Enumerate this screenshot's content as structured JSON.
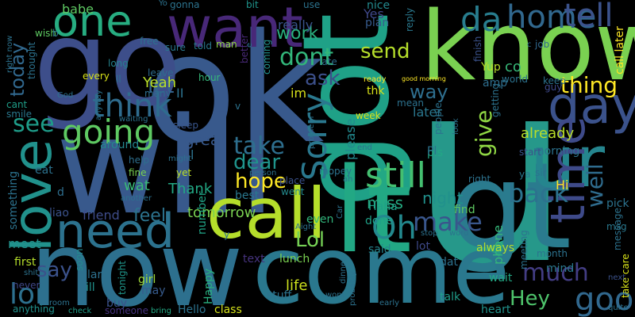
{
  "image": {
    "background_color": "#000000",
    "palette": "viridis"
  },
  "words": [
    {
      "text": "u",
      "color": "#26988a"
    },
    {
      "text": "ok",
      "color": "#38598c"
    },
    {
      "text": "will",
      "color": "#38598c"
    },
    {
      "text": "go",
      "color": "#3d4e8a"
    },
    {
      "text": "know",
      "color": "#7ad151"
    },
    {
      "text": "got",
      "color": "#1fa187"
    },
    {
      "text": "lt",
      "color": "#22a884"
    },
    {
      "text": "gt",
      "color": "#2a7b8e"
    },
    {
      "text": "now",
      "color": "#2d708e"
    },
    {
      "text": "come",
      "color": "#2a788e"
    },
    {
      "text": "call",
      "color": "#b5de2b"
    },
    {
      "text": "want",
      "color": "#482878"
    },
    {
      "text": "one",
      "color": "#27ad81"
    },
    {
      "text": "love",
      "color": "#21918c"
    },
    {
      "text": "need",
      "color": "#2c728e"
    },
    {
      "text": "ur",
      "color": "#25858e"
    },
    {
      "text": "day",
      "color": "#3b528b"
    },
    {
      "text": "time",
      "color": "#3e4a89"
    },
    {
      "text": "da",
      "color": "#287d8e"
    },
    {
      "text": "home",
      "color": "#31688e"
    },
    {
      "text": "tell",
      "color": "#3b528b"
    },
    {
      "text": "going",
      "color": "#5ec962"
    },
    {
      "text": "think",
      "color": "#2f6c8e"
    },
    {
      "text": "still",
      "color": "#44bf70"
    },
    {
      "text": "take",
      "color": "#2e6f8e"
    },
    {
      "text": "Sorry",
      "color": "#2a788e"
    },
    {
      "text": "dont",
      "color": "#32b67a"
    },
    {
      "text": "work",
      "color": "#2ab07f"
    },
    {
      "text": "see",
      "color": "#1e9c89"
    },
    {
      "text": "today",
      "color": "#31688e"
    },
    {
      "text": "good",
      "color": "#31688e"
    },
    {
      "text": "back",
      "color": "#2c728e"
    },
    {
      "text": "make",
      "color": "#39568c"
    },
    {
      "text": "Oh",
      "color": "#23898e"
    },
    {
      "text": "hope",
      "color": "#fde725"
    },
    {
      "text": "dear",
      "color": "#1f948c"
    },
    {
      "text": "much",
      "color": "#433d84"
    },
    {
      "text": "Hey",
      "color": "#4ec36b"
    },
    {
      "text": "say",
      "color": "#3b528b"
    },
    {
      "text": "lor",
      "color": "#2d708e"
    },
    {
      "text": "give",
      "color": "#8fd744"
    },
    {
      "text": "well",
      "color": "#2f6c8e"
    },
    {
      "text": "thing",
      "color": "#fde725"
    },
    {
      "text": "way",
      "color": "#2e6e8e"
    },
    {
      "text": "send",
      "color": "#b5de2b"
    },
    {
      "text": "ask",
      "color": "#3c4f8a"
    },
    {
      "text": "let",
      "color": "#33638d"
    },
    {
      "text": "Lol",
      "color": "#75d054"
    },
    {
      "text": "Yeah",
      "color": "#b8de29"
    },
    {
      "text": "feel",
      "color": "#2c738e"
    },
    {
      "text": "night",
      "color": "#21918c"
    },
    {
      "text": "miss",
      "color": "#25ab82"
    },
    {
      "text": "please",
      "color": "#23898e"
    },
    {
      "text": "really",
      "color": "#3a548c"
    },
    {
      "text": "babe",
      "color": "#5ec962"
    },
    {
      "text": "already",
      "color": "#b8de29"
    },
    {
      "text": "tomorrow",
      "color": "#7ad151"
    },
    {
      "text": "great",
      "color": "#38598c"
    },
    {
      "text": "Thank",
      "color": "#22a884"
    },
    {
      "text": "wat",
      "color": "#39b977"
    },
    {
      "text": "friend",
      "color": "#3e4c8a"
    },
    {
      "text": "phone",
      "color": "#35b779"
    },
    {
      "text": "later",
      "color": "#2a778e"
    },
    {
      "text": "meet",
      "color": "#21918c"
    },
    {
      "text": "life",
      "color": "#cde11d"
    },
    {
      "text": "Hi",
      "color": "#fde725"
    },
    {
      "text": "Yes",
      "color": "#3f4889"
    },
    {
      "text": "im",
      "color": "#d8e219"
    },
    {
      "text": "pls",
      "color": "#22a884"
    },
    {
      "text": "lunch",
      "color": "#7ad151"
    },
    {
      "text": "text",
      "color": "#46337e"
    },
    {
      "text": "said",
      "color": "#25858e"
    },
    {
      "text": "lot",
      "color": "#3e4989"
    },
    {
      "text": "find",
      "color": "#5ec962"
    },
    {
      "text": "always",
      "color": "#b5de2b"
    },
    {
      "text": "Haha",
      "color": "#1fa088"
    },
    {
      "text": "done",
      "color": "#1fa188"
    },
    {
      "text": "even",
      "color": "#31b57b"
    },
    {
      "text": "wait",
      "color": "#22a884"
    },
    {
      "text": "mind",
      "color": "#2a788e"
    },
    {
      "text": "heart",
      "color": "#20928c"
    },
    {
      "text": "class",
      "color": "#d5e21a"
    },
    {
      "text": "stuff",
      "color": "#2c738e"
    },
    {
      "text": "talk",
      "color": "#1f9e89"
    },
    {
      "text": "Happy",
      "color": "#2ab07f"
    },
    {
      "text": "Hello",
      "color": "#2c738e"
    },
    {
      "text": "buy",
      "color": "#3b528b"
    },
    {
      "text": "girl",
      "color": "#a0da39"
    },
    {
      "text": "may",
      "color": "#375b8d"
    },
    {
      "text": "first",
      "color": "#b5de2b"
    },
    {
      "text": "never",
      "color": "#3f4788"
    },
    {
      "text": "anything",
      "color": "#21918c"
    },
    {
      "text": "someone",
      "color": "#46327e"
    },
    {
      "text": "check",
      "color": "#1f9e89"
    },
    {
      "text": "bring",
      "color": "#22a884"
    },
    {
      "text": "ill",
      "color": "#20928c"
    },
    {
      "text": "lar",
      "color": "#2d708e"
    },
    {
      "text": "soon",
      "color": "#238a8d"
    },
    {
      "text": "tonight",
      "color": "#1f968b"
    },
    {
      "text": "liao",
      "color": "#3b528b"
    },
    {
      "text": "d",
      "color": "#2e6e8e"
    },
    {
      "text": "something",
      "color": "#2c728e"
    },
    {
      "text": "eat",
      "color": "#2c728e"
    },
    {
      "text": "around",
      "color": "#24868e"
    },
    {
      "text": "sleep",
      "color": "#39568c"
    },
    {
      "text": "help",
      "color": "#2e6f8e"
    },
    {
      "text": "fine",
      "color": "#7ad151"
    },
    {
      "text": "yet",
      "color": "#bddf26"
    },
    {
      "text": "best",
      "color": "#2a788e"
    },
    {
      "text": "went",
      "color": "#238a8d"
    },
    {
      "text": "place",
      "color": "#3b528b"
    },
    {
      "text": "number",
      "color": "#20a386"
    },
    {
      "text": "leave",
      "color": "#2f6c8e"
    },
    {
      "text": "hour",
      "color": "#35b779"
    },
    {
      "text": "told",
      "color": "#2a778e"
    },
    {
      "text": "sure",
      "color": "#2a788e"
    },
    {
      "text": "free",
      "color": "#2c728e"
    },
    {
      "text": "every",
      "color": "#d8e219"
    },
    {
      "text": "long",
      "color": "#26828e"
    },
    {
      "text": "many",
      "color": "#2e6e8e"
    },
    {
      "text": "cant",
      "color": "#1f9e89"
    },
    {
      "text": "smile",
      "color": "#2a788e"
    },
    {
      "text": "thought",
      "color": "#2c728e"
    },
    {
      "text": "wish",
      "color": "#5ec962"
    },
    {
      "text": "gonna",
      "color": "#2c738e"
    },
    {
      "text": "bit",
      "color": "#1f948c"
    },
    {
      "text": "man",
      "color": "#8fd744"
    },
    {
      "text": "better",
      "color": "#482878"
    },
    {
      "text": "coming",
      "color": "#21918c"
    },
    {
      "text": "late",
      "color": "#2e6e8e"
    },
    {
      "text": "use",
      "color": "#2c728e"
    },
    {
      "text": "nice",
      "color": "#23898e"
    },
    {
      "text": "plan",
      "color": "#375b8d"
    },
    {
      "text": "reply",
      "color": "#2a788e"
    },
    {
      "text": "finish",
      "color": "#3b528b"
    },
    {
      "text": "Yup",
      "color": "#b8de29"
    },
    {
      "text": "co",
      "color": "#37b878"
    },
    {
      "text": "amp",
      "color": "#2e6e8e"
    },
    {
      "text": "job",
      "color": "#31688e"
    },
    {
      "text": "keep",
      "color": "#2c728e"
    },
    {
      "text": "guy",
      "color": "#3e4989"
    },
    {
      "text": "call later",
      "color": "#fde725"
    },
    {
      "text": "morning",
      "color": "#2c728e"
    },
    {
      "text": "sir",
      "color": "#2c738e"
    },
    {
      "text": "pick",
      "color": "#2c728e"
    },
    {
      "text": "msg",
      "color": "#2a788e"
    },
    {
      "text": "message",
      "color": "#2c728e"
    },
    {
      "text": "take care",
      "color": "#d8e219"
    },
    {
      "text": "next",
      "color": "#3b528b"
    },
    {
      "text": "quite",
      "color": "#2c728e"
    },
    {
      "text": "month",
      "color": "#2c728e"
    },
    {
      "text": "meeting",
      "color": "#2c728e"
    },
    {
      "text": "ready",
      "color": "#fde725"
    },
    {
      "text": "thk",
      "color": "#d8e219"
    },
    {
      "text": "mean",
      "color": "#2c728e"
    },
    {
      "text": "week",
      "color": "#d8e219"
    },
    {
      "text": "people",
      "color": "#2c728e"
    },
    {
      "text": "getting",
      "color": "#2c728e"
    },
    {
      "text": "start",
      "color": "#3b528b"
    },
    {
      "text": "ya",
      "color": "#2a788e"
    },
    {
      "text": "Pl",
      "color": "#2c728e"
    },
    {
      "text": "right",
      "color": "#2c728e"
    },
    {
      "text": "stop",
      "color": "#2c728e"
    },
    {
      "text": "word",
      "color": "#2c728e"
    },
    {
      "text": "early",
      "color": "#2c728e"
    },
    {
      "text": "dat",
      "color": "#2c728e"
    },
    {
      "text": "probably",
      "color": "#2c728e"
    },
    {
      "text": "wont",
      "color": "#2c728e"
    },
    {
      "text": "dinner",
      "color": "#2c728e"
    },
    {
      "text": "Aight",
      "color": "#2c728e"
    },
    {
      "text": "person",
      "color": "#2c728e"
    },
    {
      "text": "might",
      "color": "#2c728e"
    },
    {
      "text": "another",
      "color": "#2c728e"
    },
    {
      "text": "mopey",
      "color": "#2c728e"
    },
    {
      "text": "ah",
      "color": "#2c728e"
    },
    {
      "text": "problem",
      "color": "#2c728e"
    },
    {
      "text": "look",
      "color": "#2c728e"
    },
    {
      "text": "world",
      "color": "#2c728e"
    },
    {
      "text": "good morning",
      "color": "#fde725"
    },
    {
      "text": "waiting",
      "color": "#2c728e"
    },
    {
      "text": "anyway",
      "color": "#2c728e"
    },
    {
      "text": "God",
      "color": "#2c728e"
    },
    {
      "text": "shit",
      "color": "#2c728e"
    },
    {
      "text": "room",
      "color": "#2c728e"
    },
    {
      "text": "right now",
      "color": "#2c728e"
    },
    {
      "text": "ll",
      "color": "#2c728e"
    },
    {
      "text": "II",
      "color": "#2c728e"
    },
    {
      "text": "Yo",
      "color": "#2c728e"
    },
    {
      "text": "c",
      "color": "#2c728e"
    },
    {
      "text": "b",
      "color": "#2c728e"
    },
    {
      "text": "v",
      "color": "#2c728e"
    },
    {
      "text": "y",
      "color": "#2c728e"
    },
    {
      "text": "e",
      "color": "#2c728e"
    },
    {
      "text": "end",
      "color": "#2c728e"
    },
    {
      "text": "Car",
      "color": "#2c728e"
    },
    {
      "text": "l",
      "color": "#2c728e"
    }
  ]
}
